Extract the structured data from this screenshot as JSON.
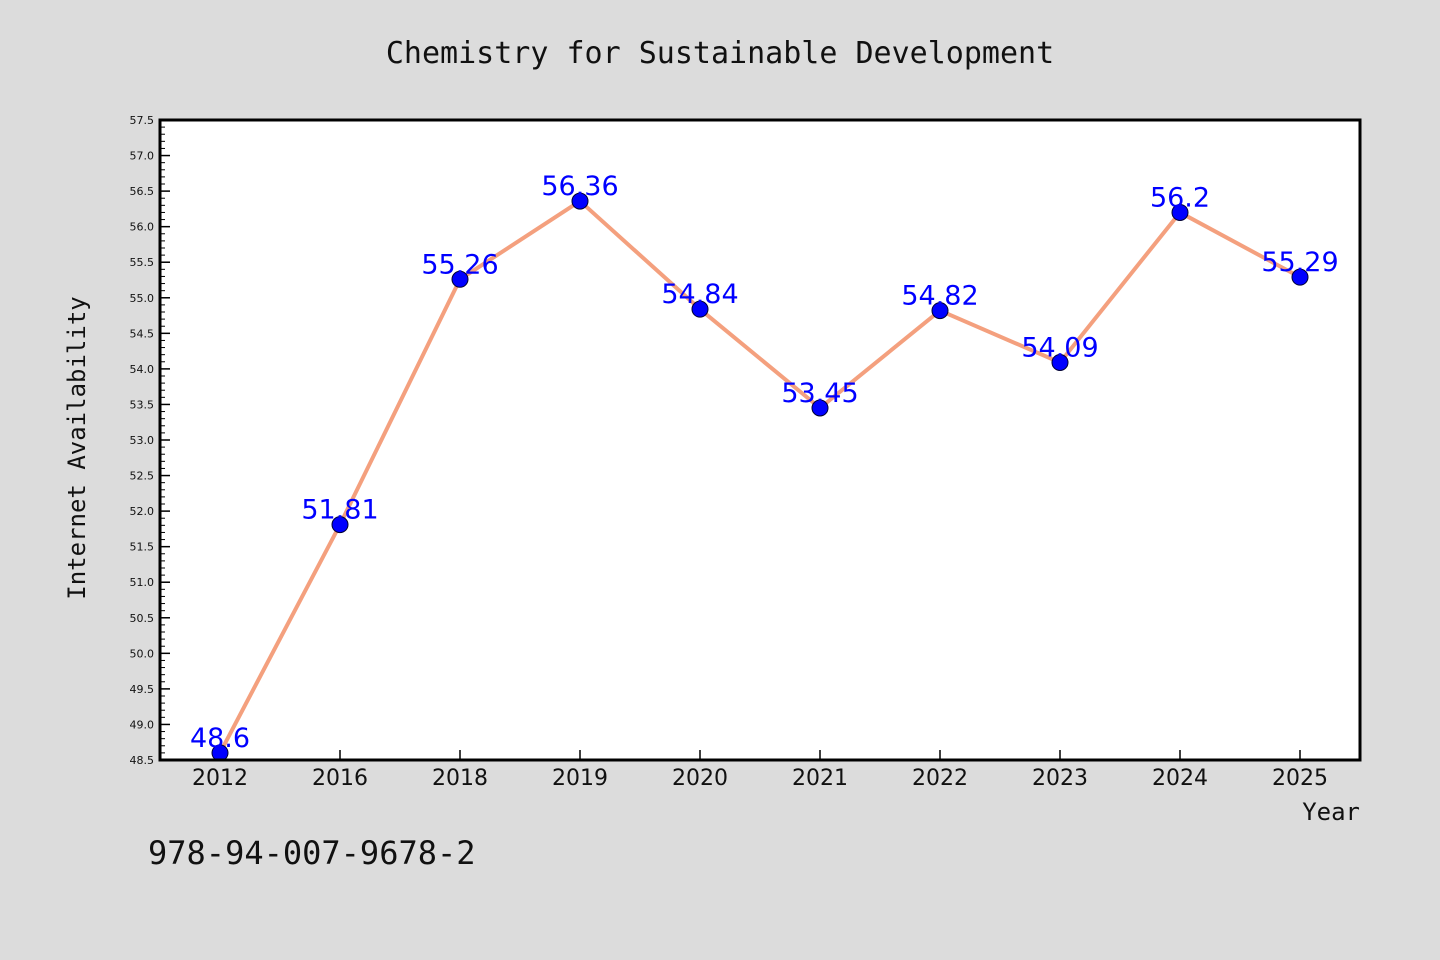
{
  "colors": {
    "background": "#dcdcdc",
    "plot_area": "#ffffff",
    "line": "#f4a07e",
    "marker": "#0000ff",
    "data_label": "#0000ff",
    "text": "#111111"
  },
  "footer_text": "978-94-007-9678-2",
  "chart_data": {
    "type": "line",
    "title": "Chemistry for Sustainable Development",
    "xlabel": "Year",
    "ylabel": "Internet Availability",
    "categories": [
      "2012",
      "2016",
      "2018",
      "2019",
      "2020",
      "2021",
      "2022",
      "2023",
      "2024",
      "2025"
    ],
    "series": [
      {
        "values": [
          48.6,
          51.81,
          55.26,
          56.36,
          54.84,
          53.45,
          54.82,
          54.09,
          56.2,
          55.29
        ],
        "data_labels": [
          "48.6",
          "51.81",
          "55.26",
          "56.36",
          "54.84",
          "53.45",
          "54.82",
          "54.09",
          "56.2",
          "55.29"
        ]
      }
    ],
    "ylim": [
      48.5,
      57.5
    ],
    "yticks": [
      "48.5",
      "49.0",
      "49.5",
      "50.0",
      "50.5",
      "51.0",
      "51.5",
      "52.0",
      "52.5",
      "53.0",
      "53.5",
      "54.0",
      "54.5",
      "55.0",
      "55.5",
      "56.0",
      "56.5",
      "57.0",
      "57.5"
    ],
    "grid": false,
    "legend": "none",
    "marker": "circle"
  }
}
